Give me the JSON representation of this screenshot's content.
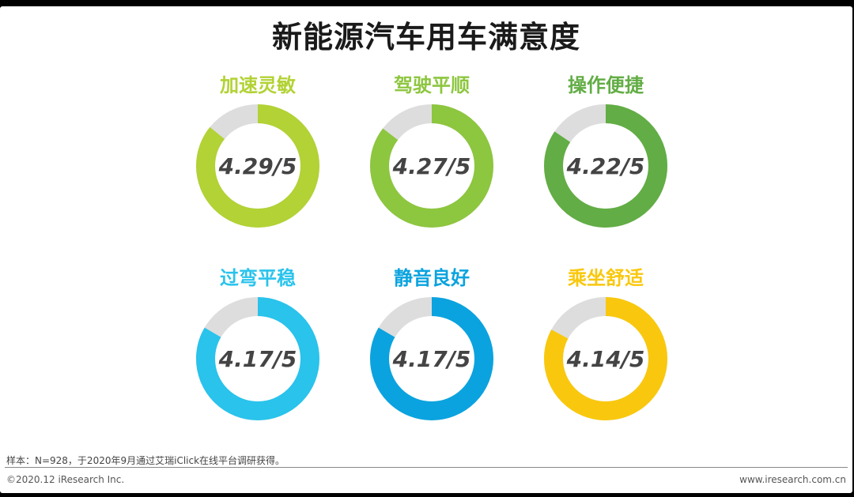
{
  "title": "新能源汽车用车满意度",
  "chart_data": [
    {
      "type": "pie",
      "title": "加速灵敏",
      "value": 4.29,
      "max": 5,
      "label": "4.29/5",
      "color": "#b2d235"
    },
    {
      "type": "pie",
      "title": "驾驶平顺",
      "value": 4.27,
      "max": 5,
      "label": "4.27/5",
      "color": "#8dc63f"
    },
    {
      "type": "pie",
      "title": "操作便捷",
      "value": 4.22,
      "max": 5,
      "label": "4.22/5",
      "color": "#62ad45"
    },
    {
      "type": "pie",
      "title": "过弯平稳",
      "value": 4.17,
      "max": 5,
      "label": "4.17/5",
      "color": "#29c3ec"
    },
    {
      "type": "pie",
      "title": "静音良好",
      "value": 4.17,
      "max": 5,
      "label": "4.17/5",
      "color": "#0aa3df"
    },
    {
      "type": "pie",
      "title": "乘坐舒适",
      "value": 4.14,
      "max": 5,
      "label": "4.14/5",
      "color": "#f9c80e"
    }
  ],
  "track_color": "#dddddd",
  "footer": {
    "note": "样本：N=928，于2020年9月通过艾瑞iClick在线平台调研获得。",
    "copyright": "©2020.12 iResearch Inc.",
    "website": "www.iresearch.com.cn"
  }
}
